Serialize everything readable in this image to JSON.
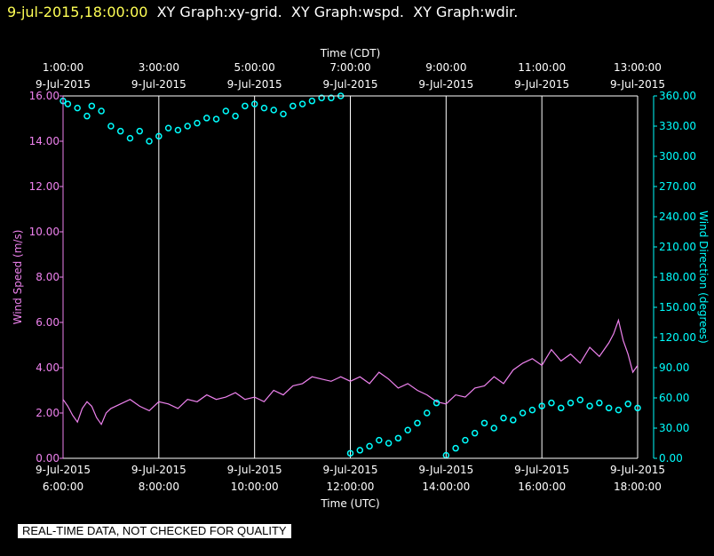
{
  "header": {
    "timestamp": "9-jul-2015,18:00:00",
    "graphs": [
      "XY Graph:xy-grid.",
      "XY Graph:wspd.",
      "XY Graph:wdir."
    ]
  },
  "disclaimer": "REAL-TIME DATA, NOT CHECKED FOR QUALITY",
  "colors": {
    "speed": "#ee82ee",
    "direction": "#00ffff",
    "grid": "#ffffff",
    "background": "#000000",
    "timestamp": "#ffff55"
  },
  "chart_data": {
    "type": "line",
    "top_axis": {
      "label": "Time (CDT)",
      "ticks": [
        {
          "hour": 6,
          "time": "1:00:00",
          "date": "9-Jul-2015"
        },
        {
          "hour": 8,
          "time": "3:00:00",
          "date": "9-Jul-2015"
        },
        {
          "hour": 10,
          "time": "5:00:00",
          "date": "9-Jul-2015"
        },
        {
          "hour": 12,
          "time": "7:00:00",
          "date": "9-Jul-2015"
        },
        {
          "hour": 14,
          "time": "9:00:00",
          "date": "9-Jul-2015"
        },
        {
          "hour": 16,
          "time": "11:00:00",
          "date": "9-Jul-2015"
        },
        {
          "hour": 18,
          "time": "13:00:00",
          "date": "9-Jul-2015"
        }
      ]
    },
    "bottom_axis": {
      "label": "Time (UTC)",
      "ticks": [
        {
          "hour": 6,
          "date": "9-Jul-2015",
          "time": "6:00:00"
        },
        {
          "hour": 8,
          "date": "9-Jul-2015",
          "time": "8:00:00"
        },
        {
          "hour": 10,
          "date": "9-Jul-2015",
          "time": "10:00:00"
        },
        {
          "hour": 12,
          "date": "9-Jul-2015",
          "time": "12:00:00"
        },
        {
          "hour": 14,
          "date": "9-Jul-2015",
          "time": "14:00:00"
        },
        {
          "hour": 16,
          "date": "9-Jul-2015",
          "time": "16:00:00"
        },
        {
          "hour": 18,
          "date": "9-Jul-2015",
          "time": "18:00:00"
        }
      ],
      "range": [
        6,
        18
      ]
    },
    "left_axis": {
      "label": "Wind Speed (m/s)",
      "range": [
        0,
        16
      ],
      "ticks": [
        "0.00",
        "2.00",
        "4.00",
        "6.00",
        "8.00",
        "10.00",
        "12.00",
        "14.00",
        "16.00"
      ]
    },
    "right_axis": {
      "label": "Wind Direction (degrees)",
      "range": [
        0,
        360
      ],
      "ticks": [
        "0.00",
        "30.00",
        "60.00",
        "90.00",
        "120.00",
        "150.00",
        "180.00",
        "210.00",
        "240.00",
        "270.00",
        "300.00",
        "330.00",
        "360.00"
      ]
    },
    "grid": "vertical",
    "series": [
      {
        "name": "Wind Speed",
        "axis": "left",
        "style": "line",
        "x": [
          6.0,
          6.1,
          6.2,
          6.3,
          6.4,
          6.5,
          6.6,
          6.7,
          6.8,
          6.9,
          7.0,
          7.2,
          7.4,
          7.6,
          7.8,
          8.0,
          8.2,
          8.4,
          8.6,
          8.8,
          9.0,
          9.2,
          9.4,
          9.6,
          9.8,
          10.0,
          10.2,
          10.4,
          10.6,
          10.8,
          11.0,
          11.2,
          11.4,
          11.6,
          11.8,
          12.0,
          12.2,
          12.4,
          12.6,
          12.8,
          13.0,
          13.2,
          13.4,
          13.6,
          13.8,
          14.0,
          14.2,
          14.4,
          14.6,
          14.8,
          15.0,
          15.2,
          15.4,
          15.6,
          15.8,
          16.0,
          16.2,
          16.4,
          16.6,
          16.8,
          17.0,
          17.2,
          17.4,
          17.5,
          17.6,
          17.7,
          17.8,
          17.9,
          18.0
        ],
        "y": [
          2.6,
          2.3,
          1.9,
          1.6,
          2.2,
          2.5,
          2.3,
          1.8,
          1.5,
          2.0,
          2.2,
          2.4,
          2.6,
          2.3,
          2.1,
          2.5,
          2.4,
          2.2,
          2.6,
          2.5,
          2.8,
          2.6,
          2.7,
          2.9,
          2.6,
          2.7,
          2.5,
          3.0,
          2.8,
          3.2,
          3.3,
          3.6,
          3.5,
          3.4,
          3.6,
          3.4,
          3.6,
          3.3,
          3.8,
          3.5,
          3.1,
          3.3,
          3.0,
          2.8,
          2.5,
          2.4,
          2.8,
          2.7,
          3.1,
          3.2,
          3.6,
          3.3,
          3.9,
          4.2,
          4.4,
          4.1,
          4.8,
          4.3,
          4.6,
          4.2,
          4.9,
          4.5,
          5.1,
          5.5,
          6.1,
          5.2,
          4.6,
          3.8,
          4.1
        ]
      },
      {
        "name": "Wind Direction",
        "axis": "right",
        "style": "points",
        "x": [
          6.0,
          6.1,
          6.3,
          6.5,
          6.6,
          6.8,
          7.0,
          7.2,
          7.4,
          7.6,
          7.8,
          8.0,
          8.2,
          8.4,
          8.6,
          8.8,
          9.0,
          9.2,
          9.4,
          9.6,
          9.8,
          10.0,
          10.2,
          10.4,
          10.6,
          10.8,
          11.0,
          11.2,
          11.4,
          11.6,
          11.8,
          12.0,
          12.2,
          12.4,
          12.6,
          12.8,
          13.0,
          13.2,
          13.4,
          13.6,
          13.8,
          14.0,
          14.2,
          14.4,
          14.6,
          14.8,
          15.0,
          15.2,
          15.4,
          15.6,
          15.8,
          16.0,
          16.2,
          16.4,
          16.6,
          16.8,
          17.0,
          17.2,
          17.4,
          17.6,
          17.8,
          18.0
        ],
        "y": [
          355,
          352,
          348,
          340,
          350,
          345,
          330,
          325,
          318,
          325,
          315,
          320,
          328,
          326,
          330,
          333,
          338,
          337,
          345,
          340,
          350,
          352,
          348,
          346,
          342,
          350,
          352,
          355,
          358,
          358,
          360,
          5,
          8,
          12,
          18,
          15,
          20,
          28,
          35,
          45,
          55,
          3,
          10,
          18,
          25,
          35,
          30,
          40,
          38,
          45,
          48,
          52,
          55,
          50,
          55,
          58,
          52,
          55,
          50,
          48,
          54,
          50
        ]
      }
    ]
  }
}
